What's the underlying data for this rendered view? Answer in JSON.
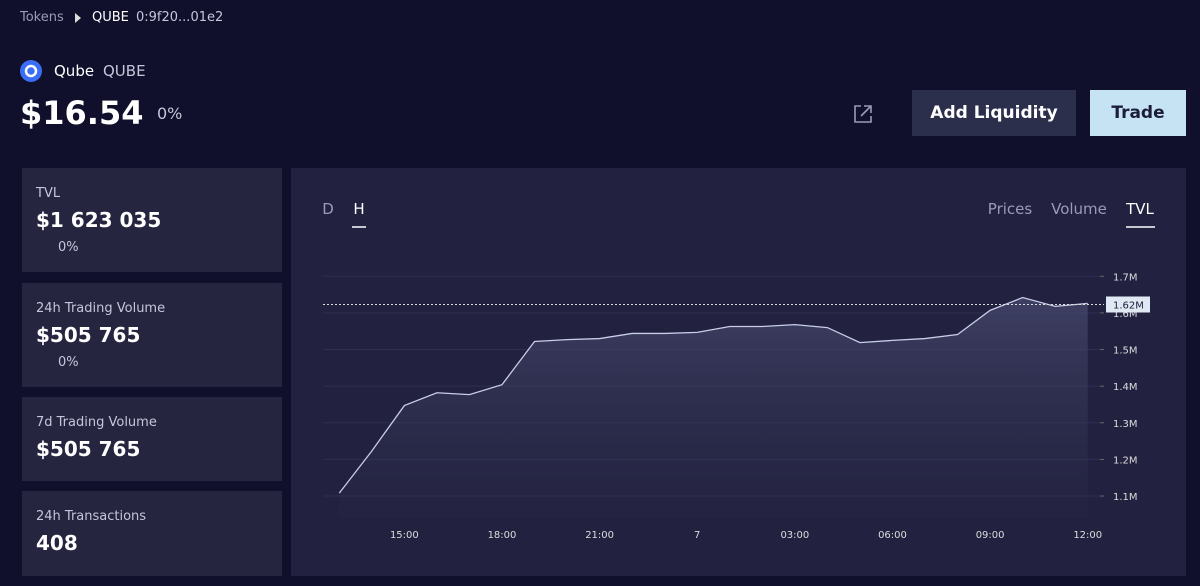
{
  "breadcrumb": {
    "root": "Tokens",
    "symbol": "QUBE",
    "address": "0:9f20...01e2"
  },
  "token": {
    "name": "Qube",
    "symbol": "QUBE",
    "price": "$16.54",
    "change": "0%"
  },
  "buttons": {
    "add_liquidity": "Add Liquidity",
    "trade": "Trade"
  },
  "stats": [
    {
      "label": "TVL",
      "value": "$1 623 035",
      "change": "0%"
    },
    {
      "label": "24h Trading Volume",
      "value": "$505 765",
      "change": "0%"
    },
    {
      "label": "7d Trading Volume",
      "value": "$505 765"
    },
    {
      "label": "24h Transactions",
      "value": "408"
    }
  ],
  "range_tabs": [
    "D",
    "H"
  ],
  "metric_tabs": [
    "Prices",
    "Volume",
    "TVL"
  ],
  "chart_data": {
    "type": "area",
    "color": "#c9cde8",
    "categories": [
      null,
      null,
      "15:00",
      null,
      null,
      "18:00",
      null,
      null,
      "21:00",
      null,
      null,
      "7",
      null,
      null,
      "03:00",
      null,
      null,
      "06:00",
      null,
      null,
      "09:00",
      null,
      null,
      "12:00"
    ],
    "values": [
      1108000,
      1223000,
      1347000,
      1382000,
      1377000,
      1404000,
      1522000,
      1527000,
      1530000,
      1544000,
      1544000,
      1547000,
      1563000,
      1563000,
      1568000,
      1560000,
      1519000,
      1525000,
      1530000,
      1541000,
      1607000,
      1642000,
      1618000,
      1626000
    ],
    "ylim": [
      1040000,
      1750000
    ],
    "yticks": [
      {
        "value": 1100000,
        "label": "1.1M"
      },
      {
        "value": 1200000,
        "label": "1.2M"
      },
      {
        "value": 1300000,
        "label": "1.3M"
      },
      {
        "value": 1400000,
        "label": "1.4M"
      },
      {
        "value": 1500000,
        "label": "1.5M"
      },
      {
        "value": 1600000,
        "label": "1.6M"
      },
      {
        "value": 1700000,
        "label": "1.7M"
      }
    ],
    "grid": true,
    "current_value": 1623035,
    "current_label": "1.62M"
  }
}
